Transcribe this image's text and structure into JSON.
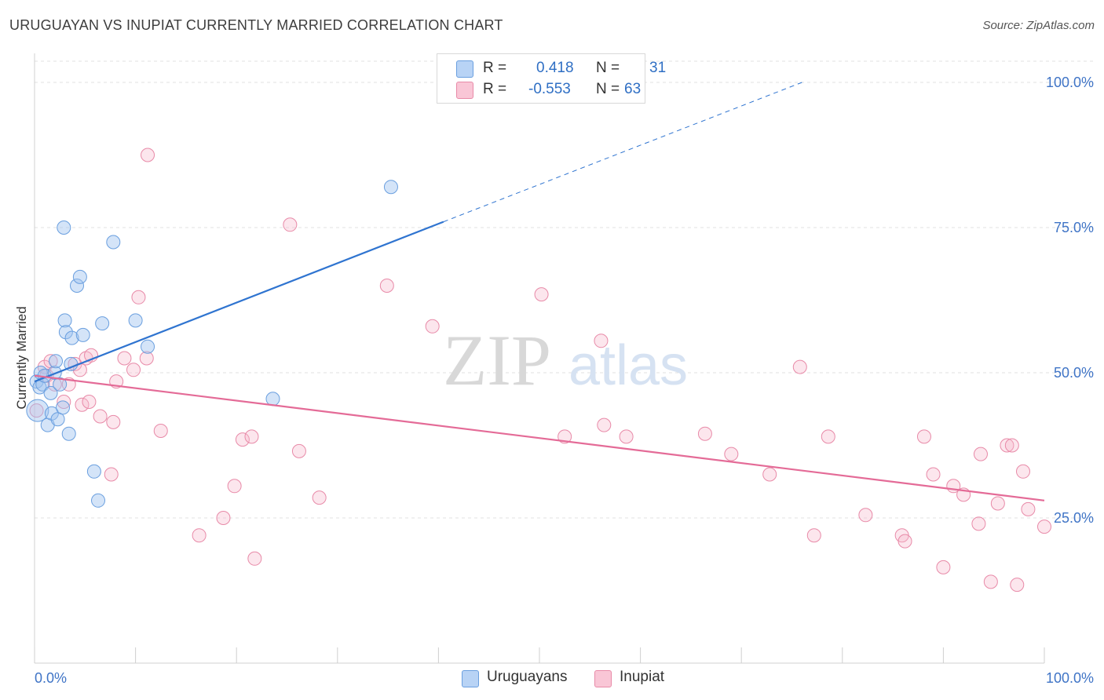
{
  "title": "URUGUAYAN VS INUPIAT CURRENTLY MARRIED CORRELATION CHART",
  "source": "Source: ZipAtlas.com",
  "watermark": {
    "zip": "ZIP",
    "atlas": "atlas"
  },
  "legend": {
    "r_label": "R =",
    "n_label": "N =",
    "items": [
      {
        "name": "Uruguayans",
        "r": "0.418",
        "n": "31",
        "fill": "#b8d3f5",
        "stroke": "#6a9fdf"
      },
      {
        "name": "Inupiat",
        "r": "-0.553",
        "n": "63",
        "fill": "#f9c6d6",
        "stroke": "#e88aa8"
      }
    ]
  },
  "colors": {
    "blue_point_fill": "rgba(160,196,240,0.45)",
    "blue_point_stroke": "#6a9fdf",
    "pink_point_fill": "rgba(246,182,204,0.35)",
    "pink_point_stroke": "#e88aa8",
    "blue_line": "#2f74d0",
    "pink_line": "#e46b97",
    "axis_label": "#3f74c6",
    "grid": "#e2e2e2"
  },
  "chart_data": {
    "type": "scatter",
    "title": "URUGUAYAN VS INUPIAT CURRENTLY MARRIED CORRELATION CHART",
    "xlabel": "",
    "ylabel": "Currently Married",
    "xlim": [
      0,
      100
    ],
    "ylim": [
      0,
      105
    ],
    "x_tick_labels": [
      "0.0%",
      "100.0%"
    ],
    "y_ticks": [
      25,
      50,
      75,
      100
    ],
    "y_tick_labels": [
      "25.0%",
      "50.0%",
      "75.0%",
      "100.0%"
    ],
    "grid": true,
    "series": [
      {
        "name": "Uruguayans",
        "r": 0.418,
        "n": 31,
        "points": [
          [
            0.2,
            48.5
          ],
          [
            0.3,
            43.5
          ],
          [
            0.5,
            47.5
          ],
          [
            0.6,
            50
          ],
          [
            0.8,
            48
          ],
          [
            1.0,
            49.5
          ],
          [
            1.3,
            41
          ],
          [
            1.6,
            46.5
          ],
          [
            1.7,
            43
          ],
          [
            2.0,
            50
          ],
          [
            2.1,
            52
          ],
          [
            2.3,
            42
          ],
          [
            2.5,
            48
          ],
          [
            2.8,
            44
          ],
          [
            2.9,
            75
          ],
          [
            3.0,
            59
          ],
          [
            3.1,
            57
          ],
          [
            3.4,
            39.5
          ],
          [
            3.6,
            51.5
          ],
          [
            3.7,
            56
          ],
          [
            4.2,
            65
          ],
          [
            4.5,
            66.5
          ],
          [
            4.8,
            56.5
          ],
          [
            5.9,
            33
          ],
          [
            6.3,
            28
          ],
          [
            6.7,
            58.5
          ],
          [
            7.8,
            72.5
          ],
          [
            10.0,
            59
          ],
          [
            11.2,
            54.5
          ],
          [
            23.6,
            45.5
          ],
          [
            35.3,
            82
          ]
        ],
        "trend": {
          "x0": 0,
          "y0": 48.5,
          "x1": 40.5,
          "y1": 76,
          "dash_to": [
            76,
            100
          ]
        }
      },
      {
        "name": "Inupiat",
        "r": -0.553,
        "n": 63,
        "points": [
          [
            0.2,
            43.5
          ],
          [
            1.0,
            51
          ],
          [
            1.2,
            49.5
          ],
          [
            1.6,
            52
          ],
          [
            2.0,
            48
          ],
          [
            2.9,
            45
          ],
          [
            3.4,
            48
          ],
          [
            4.0,
            51.5
          ],
          [
            4.5,
            50.5
          ],
          [
            4.7,
            44.5
          ],
          [
            5.1,
            52.5
          ],
          [
            5.4,
            45
          ],
          [
            5.6,
            53
          ],
          [
            6.5,
            42.5
          ],
          [
            7.6,
            32.5
          ],
          [
            7.8,
            41.5
          ],
          [
            8.1,
            48.5
          ],
          [
            8.9,
            52.5
          ],
          [
            9.8,
            50.5
          ],
          [
            10.3,
            63
          ],
          [
            11.1,
            52.5
          ],
          [
            11.2,
            87.5
          ],
          [
            12.5,
            40
          ],
          [
            16.3,
            22
          ],
          [
            18.7,
            25
          ],
          [
            19.8,
            30.5
          ],
          [
            20.6,
            38.5
          ],
          [
            21.5,
            39
          ],
          [
            21.8,
            18
          ],
          [
            25.3,
            75.5
          ],
          [
            26.2,
            36.5
          ],
          [
            28.2,
            28.5
          ],
          [
            34.9,
            65
          ],
          [
            39.4,
            58
          ],
          [
            50.2,
            63.5
          ],
          [
            52.5,
            39
          ],
          [
            56.1,
            55.5
          ],
          [
            56.4,
            41
          ],
          [
            58.6,
            39
          ],
          [
            66.4,
            39.5
          ],
          [
            69.0,
            36
          ],
          [
            72.8,
            32.5
          ],
          [
            75.8,
            51
          ],
          [
            77.2,
            22
          ],
          [
            78.6,
            39
          ],
          [
            82.3,
            25.5
          ],
          [
            85.9,
            22
          ],
          [
            86.2,
            21
          ],
          [
            88.1,
            39
          ],
          [
            89.0,
            32.5
          ],
          [
            90.0,
            16.5
          ],
          [
            91.0,
            30.5
          ],
          [
            92.0,
            29
          ],
          [
            93.5,
            24
          ],
          [
            93.7,
            36
          ],
          [
            94.7,
            14
          ],
          [
            95.4,
            27.5
          ],
          [
            96.3,
            37.5
          ],
          [
            96.8,
            37.5
          ],
          [
            97.3,
            13.5
          ],
          [
            97.9,
            33
          ],
          [
            98.4,
            26.5
          ],
          [
            100.0,
            23.5
          ]
        ],
        "trend": {
          "x0": 0,
          "y0": 49.5,
          "x1": 100,
          "y1": 28
        }
      }
    ]
  }
}
